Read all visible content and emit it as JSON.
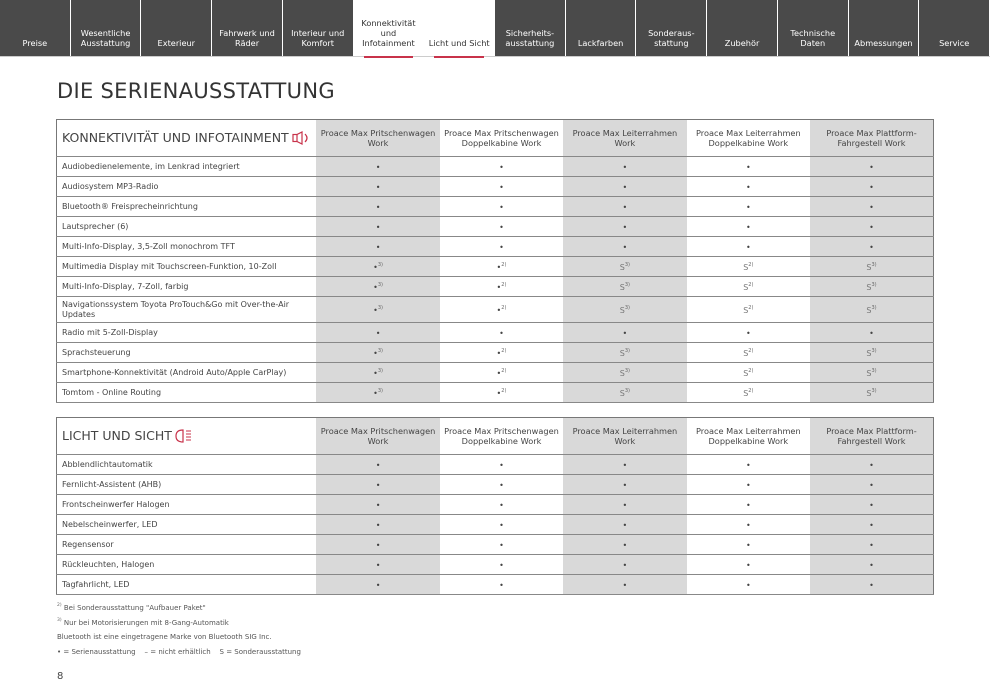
{
  "nav": {
    "tabs": [
      {
        "label": "Preise",
        "active": false
      },
      {
        "label": "Wesentliche Ausstattung",
        "active": false
      },
      {
        "label": "Exterieur",
        "active": false
      },
      {
        "label": "Fahrwerk und Räder",
        "active": false
      },
      {
        "label": "Interieur und Komfort",
        "active": false
      },
      {
        "label": "Konnektivität und Infotainment",
        "active": true
      },
      {
        "label": "Licht und Sicht",
        "active": true
      },
      {
        "label": "Sicherheits-ausstattung",
        "active": false
      },
      {
        "label": "Lackfarben",
        "active": false
      },
      {
        "label": "Sonderaus-stattung",
        "active": false
      },
      {
        "label": "Zubehör",
        "active": false
      },
      {
        "label": "Technische Daten",
        "active": false
      },
      {
        "label": "Abmessungen",
        "active": false
      },
      {
        "label": "Service",
        "active": false
      }
    ]
  },
  "title": "DIE SERIENAUSSTATTUNG",
  "accent": "#c8324a",
  "columns": [
    "Proace Max Pritschenwagen Work",
    "Proace Max Pritschenwagen Doppelkabine Work",
    "Proace Max Leiterrahmen Work",
    "Proace Max Leiterrahmen Doppelkabine Work",
    "Proace Max Plattform-Fahrgestell Work"
  ],
  "sections": [
    {
      "title": "KONNEKTIVITÄT UND INFOTAINMENT",
      "icon": "speaker-icon",
      "rows": [
        {
          "label": "Audiobedienelemente, im Lenkrad integriert",
          "cells": [
            [
              "•",
              ""
            ],
            [
              "•",
              ""
            ],
            [
              "•",
              ""
            ],
            [
              "•",
              ""
            ],
            [
              "•",
              ""
            ]
          ]
        },
        {
          "label": "Audiosystem MP3-Radio",
          "cells": [
            [
              "•",
              ""
            ],
            [
              "•",
              ""
            ],
            [
              "•",
              ""
            ],
            [
              "•",
              ""
            ],
            [
              "•",
              ""
            ]
          ]
        },
        {
          "label": "Bluetooth® Freisprecheinrichtung",
          "cells": [
            [
              "•",
              ""
            ],
            [
              "•",
              ""
            ],
            [
              "•",
              ""
            ],
            [
              "•",
              ""
            ],
            [
              "•",
              ""
            ]
          ]
        },
        {
          "label": "Lautsprecher (6)",
          "cells": [
            [
              "•",
              ""
            ],
            [
              "•",
              ""
            ],
            [
              "•",
              ""
            ],
            [
              "•",
              ""
            ],
            [
              "•",
              ""
            ]
          ]
        },
        {
          "label": "Multi-Info-Display, 3,5-Zoll monochrom TFT",
          "cells": [
            [
              "•",
              ""
            ],
            [
              "•",
              ""
            ],
            [
              "•",
              ""
            ],
            [
              "•",
              ""
            ],
            [
              "•",
              ""
            ]
          ]
        },
        {
          "label": "Multimedia Display mit Touchscreen-Funktion, 10-Zoll",
          "cells": [
            [
              "•",
              "3)"
            ],
            [
              "•",
              "2)"
            ],
            [
              "S",
              "3)"
            ],
            [
              "S",
              "2)"
            ],
            [
              "S",
              "3)"
            ]
          ]
        },
        {
          "label": "Multi-Info-Display, 7-Zoll, farbig",
          "cells": [
            [
              "•",
              "3)"
            ],
            [
              "•",
              "2)"
            ],
            [
              "S",
              "3)"
            ],
            [
              "S",
              "2)"
            ],
            [
              "S",
              "3)"
            ]
          ]
        },
        {
          "label": "Navigationssystem Toyota ProTouch&Go mit Over-the-Air Updates",
          "cells": [
            [
              "•",
              "3)"
            ],
            [
              "•",
              "2)"
            ],
            [
              "S",
              "3)"
            ],
            [
              "S",
              "2)"
            ],
            [
              "S",
              "3)"
            ]
          ]
        },
        {
          "label": "Radio mit 5-Zoll-Display",
          "cells": [
            [
              "•",
              ""
            ],
            [
              "•",
              ""
            ],
            [
              "•",
              ""
            ],
            [
              "•",
              ""
            ],
            [
              "•",
              ""
            ]
          ]
        },
        {
          "label": "Sprachsteuerung",
          "cells": [
            [
              "•",
              "3)"
            ],
            [
              "•",
              "2)"
            ],
            [
              "S",
              "3)"
            ],
            [
              "S",
              "2)"
            ],
            [
              "S",
              "3)"
            ]
          ]
        },
        {
          "label": "Smartphone-Konnektivität (Android Auto/Apple CarPlay)",
          "cells": [
            [
              "•",
              "3)"
            ],
            [
              "•",
              "2)"
            ],
            [
              "S",
              "3)"
            ],
            [
              "S",
              "2)"
            ],
            [
              "S",
              "3)"
            ]
          ]
        },
        {
          "label": "Tomtom - Online Routing",
          "cells": [
            [
              "•",
              "3)"
            ],
            [
              "•",
              "2)"
            ],
            [
              "S",
              "3)"
            ],
            [
              "S",
              "2)"
            ],
            [
              "S",
              "3)"
            ]
          ]
        }
      ]
    },
    {
      "title": "LICHT UND SICHT",
      "icon": "headlight-icon",
      "rows": [
        {
          "label": "Abblendlichtautomatik",
          "cells": [
            [
              "•",
              ""
            ],
            [
              "•",
              ""
            ],
            [
              "•",
              ""
            ],
            [
              "•",
              ""
            ],
            [
              "•",
              ""
            ]
          ]
        },
        {
          "label": "Fernlicht-Assistent (AHB)",
          "cells": [
            [
              "•",
              ""
            ],
            [
              "•",
              ""
            ],
            [
              "•",
              ""
            ],
            [
              "•",
              ""
            ],
            [
              "•",
              ""
            ]
          ]
        },
        {
          "label": "Frontscheinwerfer Halogen",
          "cells": [
            [
              "•",
              ""
            ],
            [
              "•",
              ""
            ],
            [
              "•",
              ""
            ],
            [
              "•",
              ""
            ],
            [
              "•",
              ""
            ]
          ]
        },
        {
          "label": "Nebelscheinwerfer, LED",
          "cells": [
            [
              "•",
              ""
            ],
            [
              "•",
              ""
            ],
            [
              "•",
              ""
            ],
            [
              "•",
              ""
            ],
            [
              "•",
              ""
            ]
          ]
        },
        {
          "label": "Regensensor",
          "cells": [
            [
              "•",
              ""
            ],
            [
              "•",
              ""
            ],
            [
              "•",
              ""
            ],
            [
              "•",
              ""
            ],
            [
              "•",
              ""
            ]
          ]
        },
        {
          "label": "Rückleuchten, Halogen",
          "cells": [
            [
              "•",
              ""
            ],
            [
              "•",
              ""
            ],
            [
              "•",
              ""
            ],
            [
              "•",
              ""
            ],
            [
              "•",
              ""
            ]
          ]
        },
        {
          "label": "Tagfahrlicht, LED",
          "cells": [
            [
              "•",
              ""
            ],
            [
              "•",
              ""
            ],
            [
              "•",
              ""
            ],
            [
              "•",
              ""
            ],
            [
              "•",
              ""
            ]
          ]
        }
      ]
    }
  ],
  "footnotes": [
    {
      "sup": "2)",
      "text": " Bei Sonderausstattung \"Aufbauer Paket\""
    },
    {
      "sup": "3)",
      "text": " Nur bei Motorisierungen mit 8-Gang-Automatik"
    },
    {
      "sup": "",
      "text": "Bluetooth ist eine eingetragene Marke von Bluetooth SIG Inc."
    },
    {
      "sup": "",
      "text": "• = Serienausstattung    – = nicht erhältlich    S = Sonderausstattung"
    }
  ],
  "page_number": "8"
}
